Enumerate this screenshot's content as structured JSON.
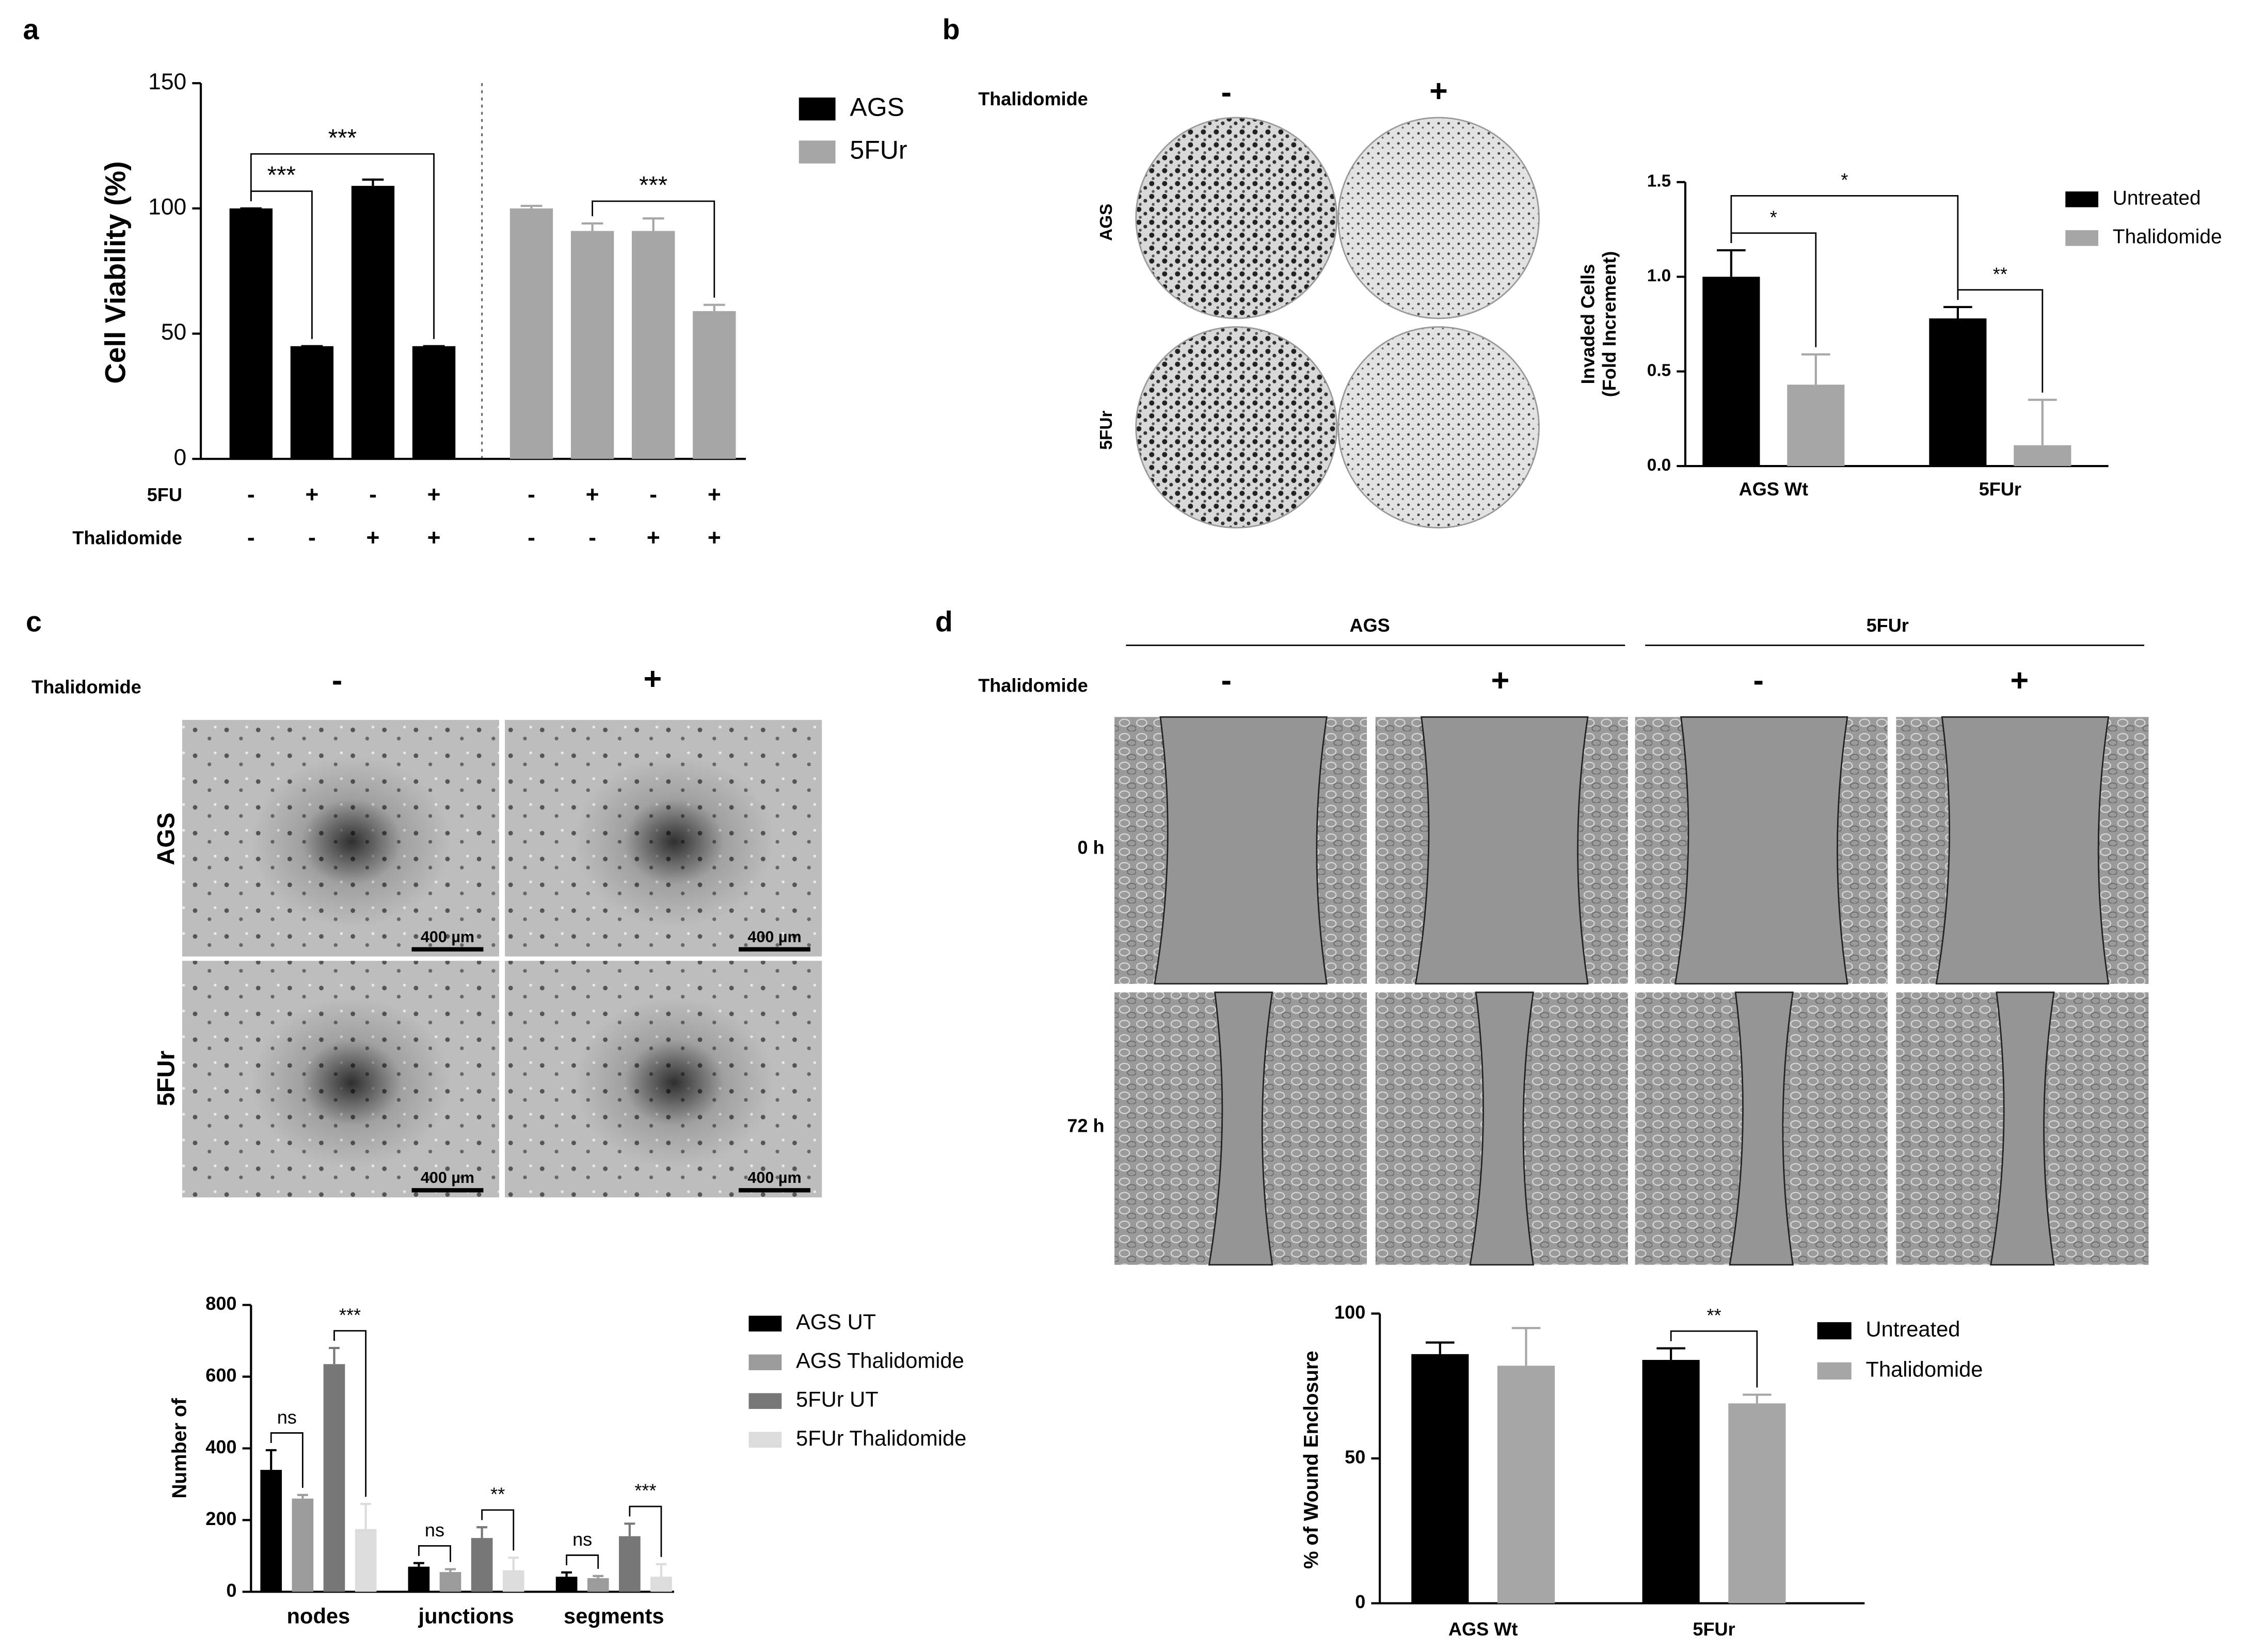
{
  "panel_letters": [
    "a",
    "b",
    "c",
    "d"
  ],
  "chart_data": [
    {
      "type": "bar",
      "y_label": "Cell Viability (%)",
      "categories": [
        null,
        null,
        null,
        null,
        null,
        null,
        null,
        null
      ],
      "series": [
        {
          "name": "AGS",
          "color": "#000000",
          "values": [
            100,
            45,
            109,
            45,
            null,
            null,
            null,
            null
          ],
          "errors": [
            0,
            0,
            2.5,
            0,
            null,
            null,
            null,
            null
          ]
        },
        {
          "name": "5FUr",
          "color": "#a6a6a6",
          "values": [
            null,
            null,
            null,
            null,
            100,
            91,
            91,
            59
          ],
          "errors": [
            null,
            null,
            null,
            null,
            1,
            3,
            5,
            2.5
          ]
        }
      ],
      "ylim": [
        0,
        150
      ],
      "yticks": [
        0,
        50,
        100,
        150
      ],
      "treatment_rows": [
        {
          "name": "5FU",
          "marks": [
            "-",
            "+",
            "-",
            "+",
            "-",
            "+",
            "-",
            "+"
          ]
        },
        {
          "name": "Thalidomide",
          "marks": [
            "-",
            "-",
            "+",
            "+",
            "-",
            "-",
            "+",
            "+"
          ]
        }
      ],
      "annotations": [
        {
          "text": "***",
          "from": [
            0,
            0
          ],
          "to": [
            1,
            0
          ]
        },
        {
          "text": "***",
          "from": [
            0,
            0
          ],
          "to": [
            3,
            0
          ]
        },
        {
          "text": "***",
          "from": [
            5,
            1
          ],
          "to": [
            7,
            1
          ]
        }
      ]
    },
    {
      "type": "bar",
      "y_label": [
        "Invaded Cells",
        "(Fold Increment)"
      ],
      "categories": [
        "AGS Wt",
        "5FUr"
      ],
      "series": [
        {
          "name": "Untreated",
          "color": "#000000",
          "values": [
            1.0,
            0.78
          ],
          "errors": [
            0.14,
            0.06
          ]
        },
        {
          "name": "Thalidomide",
          "color": "#a6a6a6",
          "values": [
            0.43,
            0.11
          ],
          "errors": [
            0.16,
            0.24
          ]
        }
      ],
      "ylim": [
        0,
        1.5
      ],
      "yticks": [
        {
          "value": 0,
          "label": "0.0"
        },
        {
          "value": 0.5,
          "label": "0.5"
        },
        {
          "value": 1,
          "label": "1.0"
        },
        {
          "value": 1.5,
          "label": "1.5"
        }
      ],
      "annotations": [
        {
          "text": "*",
          "from": [
            0,
            0
          ],
          "to": [
            0,
            1
          ]
        },
        {
          "text": "**",
          "from": [
            1,
            0
          ],
          "to": [
            1,
            1
          ]
        },
        {
          "text": "*",
          "from": [
            0,
            0
          ],
          "to": [
            1,
            0
          ]
        }
      ]
    },
    {
      "type": "bar",
      "y_label": "Number of",
      "categories": [
        "nodes",
        "junctions",
        "segments"
      ],
      "series": [
        {
          "name": "AGS UT",
          "color": "#000000",
          "values": [
            340,
            70,
            42
          ],
          "errors": [
            55,
            10,
            12
          ]
        },
        {
          "name": "AGS Thalidomide",
          "color": "#9b9b9b",
          "values": [
            260,
            55,
            38
          ],
          "errors": [
            10,
            8,
            6
          ]
        },
        {
          "name": "5FUr UT",
          "color": "#777777",
          "values": [
            635,
            150,
            155
          ],
          "errors": [
            45,
            30,
            35
          ]
        },
        {
          "name": "5FUr Thalidomide",
          "color": "#dcdcdc",
          "values": [
            175,
            60,
            42
          ],
          "errors": [
            70,
            35,
            35
          ]
        }
      ],
      "ylim": [
        0,
        800
      ],
      "yticks": [
        0,
        200,
        400,
        600,
        800
      ],
      "annotations": [
        {
          "text": "ns",
          "from": [
            0,
            0
          ],
          "to": [
            0,
            1
          ]
        },
        {
          "text": "***",
          "from": [
            0,
            2
          ],
          "to": [
            0,
            3
          ]
        },
        {
          "text": "ns",
          "from": [
            1,
            0
          ],
          "to": [
            1,
            1
          ]
        },
        {
          "text": "**",
          "from": [
            1,
            2
          ],
          "to": [
            1,
            3
          ]
        },
        {
          "text": "ns",
          "from": [
            2,
            0
          ],
          "to": [
            2,
            1
          ]
        },
        {
          "text": "***",
          "from": [
            2,
            2
          ],
          "to": [
            2,
            3
          ]
        }
      ]
    },
    {
      "type": "bar",
      "y_label": "% of Wound Enclosure",
      "categories": [
        "AGS Wt",
        "5FUr"
      ],
      "series": [
        {
          "name": "Untreated",
          "color": "#000000",
          "values": [
            86,
            84
          ],
          "errors": [
            4,
            4
          ]
        },
        {
          "name": "Thalidomide",
          "color": "#a6a6a6",
          "values": [
            82,
            69
          ],
          "errors": [
            13,
            3
          ]
        }
      ],
      "ylim": [
        0,
        100
      ],
      "yticks": [
        0,
        50,
        100
      ],
      "annotations": [
        {
          "text": "**",
          "from": [
            1,
            0
          ],
          "to": [
            1,
            1
          ]
        }
      ]
    }
  ],
  "image_panels": {
    "b": {
      "treatment_label": "Thalidomide",
      "conditions": [
        "-",
        "+"
      ],
      "rows": [
        "AGS",
        "5FUr"
      ]
    },
    "c": {
      "treatment_label": "Thalidomide",
      "conditions": [
        "-",
        "+"
      ],
      "rows": [
        "AGS",
        "5FUr"
      ],
      "scale_bars": [
        "400 µm",
        "400 µm",
        "400 µm",
        "400 µm"
      ]
    },
    "d": {
      "groups": [
        "AGS",
        "5FUr"
      ],
      "treatment_label": "Thalidomide",
      "conditions": [
        "-",
        "+",
        "-",
        "+"
      ],
      "rows": [
        "0 h",
        "72 h"
      ]
    }
  }
}
